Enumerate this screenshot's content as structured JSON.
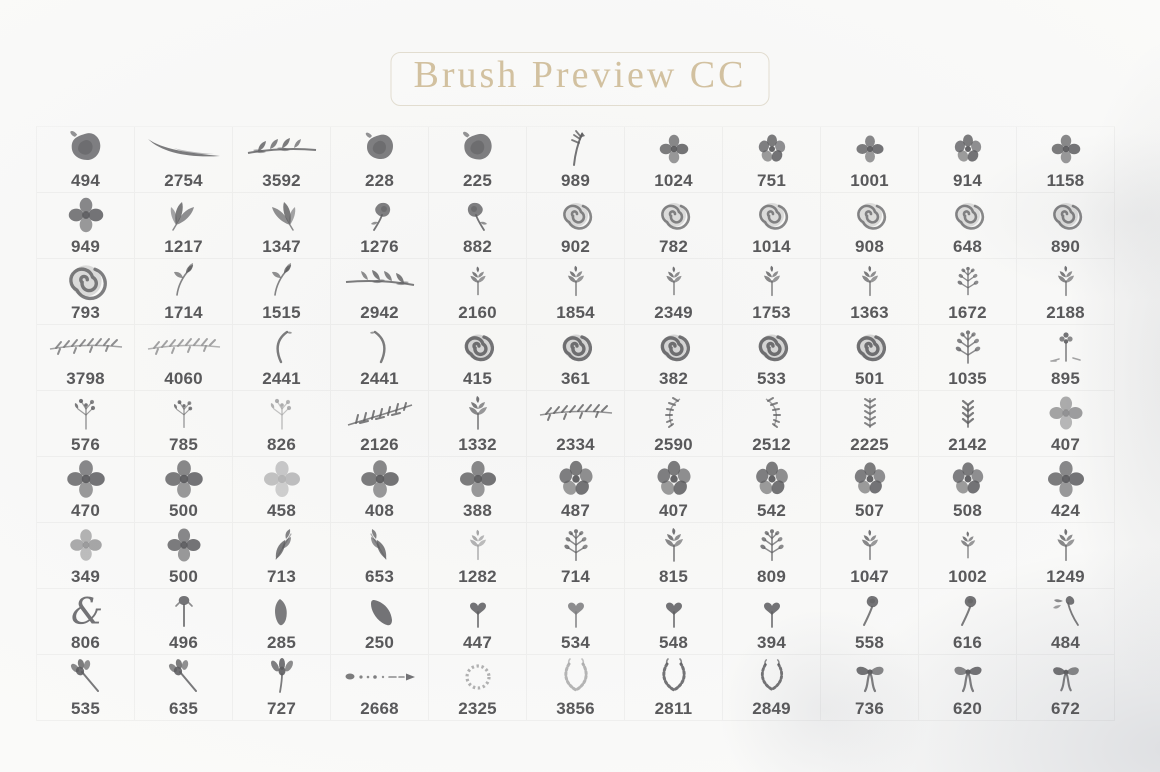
{
  "title": "Brush Preview CC",
  "colors": {
    "background": "#fafaf9",
    "title_text": "#d2c1a0",
    "title_border": "#e2ddd0",
    "number_text": "#59595b",
    "brush_ink": "#47474a",
    "wash_gray": "#a8acb6"
  },
  "grid": {
    "columns": 11,
    "rows_count": 9,
    "rows": [
      [
        {
          "v": "494",
          "i": "blob",
          "s": 1.1
        },
        {
          "v": "2754",
          "i": "swoosh"
        },
        {
          "v": "3592",
          "i": "branchH"
        },
        {
          "v": "228",
          "i": "blob"
        },
        {
          "v": "225",
          "i": "blob",
          "s": 1.05
        },
        {
          "v": "989",
          "i": "fernArrow"
        },
        {
          "v": "1024",
          "i": "flower4",
          "s": 0.95
        },
        {
          "v": "751",
          "i": "flower5"
        },
        {
          "v": "1001",
          "i": "flower4",
          "s": 0.9
        },
        {
          "v": "914",
          "i": "flower5"
        },
        {
          "v": "1158",
          "i": "flower4",
          "s": 0.95
        }
      ],
      [
        {
          "v": "949",
          "i": "flower4",
          "s": 1.15
        },
        {
          "v": "1217",
          "i": "petals3"
        },
        {
          "v": "1347",
          "i": "petals3",
          "f": 1
        },
        {
          "v": "1276",
          "i": "poppy"
        },
        {
          "v": "882",
          "i": "poppy",
          "f": 1
        },
        {
          "v": "902",
          "i": "rose"
        },
        {
          "v": "782",
          "i": "rose"
        },
        {
          "v": "1014",
          "i": "rose"
        },
        {
          "v": "908",
          "i": "rose"
        },
        {
          "v": "648",
          "i": "rose"
        },
        {
          "v": "890",
          "i": "rose"
        }
      ],
      [
        {
          "v": "793",
          "i": "rose",
          "s": 1.3,
          "o": 0.95
        },
        {
          "v": "1714",
          "i": "sprigDiag"
        },
        {
          "v": "1515",
          "i": "sprigDiag"
        },
        {
          "v": "2942",
          "i": "branchH",
          "f": 1
        },
        {
          "v": "2160",
          "i": "sprigV",
          "s": 0.85
        },
        {
          "v": "1854",
          "i": "sprigV",
          "s": 0.9
        },
        {
          "v": "2349",
          "i": "sprigV",
          "s": 0.85
        },
        {
          "v": "1753",
          "i": "sprigV",
          "s": 0.9
        },
        {
          "v": "1363",
          "i": "sprigV",
          "s": 0.9
        },
        {
          "v": "1672",
          "i": "plant",
          "s": 0.85
        },
        {
          "v": "2188",
          "i": "sprigV",
          "s": 0.9
        }
      ],
      [
        {
          "v": "3798",
          "i": "vineH",
          "o": 0.75
        },
        {
          "v": "4060",
          "i": "vineH",
          "o": 0.6
        },
        {
          "v": "2441",
          "i": "curveL"
        },
        {
          "v": "2441",
          "i": "curveL",
          "f": 1
        },
        {
          "v": "415",
          "i": "roseSolid"
        },
        {
          "v": "361",
          "i": "roseSolid"
        },
        {
          "v": "382",
          "i": "roseSolid"
        },
        {
          "v": "533",
          "i": "roseSolid"
        },
        {
          "v": "501",
          "i": "roseSolid"
        },
        {
          "v": "1035",
          "i": "plant"
        },
        {
          "v": "895",
          "i": "flowerSprig"
        }
      ],
      [
        {
          "v": "576",
          "i": "berrySprig"
        },
        {
          "v": "785",
          "i": "berrySprig",
          "s": 0.9
        },
        {
          "v": "826",
          "i": "berrySprig",
          "o": 0.5
        },
        {
          "v": "2126",
          "i": "fernDiag"
        },
        {
          "v": "1332",
          "i": "sprigV"
        },
        {
          "v": "2334",
          "i": "vineH"
        },
        {
          "v": "2590",
          "i": "laurelCurve"
        },
        {
          "v": "2512",
          "i": "laurelCurve",
          "f": 1
        },
        {
          "v": "2225",
          "i": "vineV"
        },
        {
          "v": "2142",
          "i": "chevronV"
        },
        {
          "v": "407",
          "i": "flower4",
          "o": 0.6,
          "s": 1.1
        }
      ],
      [
        {
          "v": "470",
          "i": "flower4",
          "s": 1.25
        },
        {
          "v": "500",
          "i": "flower4",
          "s": 1.25
        },
        {
          "v": "458",
          "i": "flower4",
          "o": 0.38,
          "s": 1.2
        },
        {
          "v": "408",
          "i": "flower4",
          "s": 1.25
        },
        {
          "v": "388",
          "i": "flower4",
          "s": 1.2
        },
        {
          "v": "487",
          "i": "flower5",
          "s": 1.25
        },
        {
          "v": "407",
          "i": "flower5",
          "s": 1.25
        },
        {
          "v": "542",
          "i": "flower5",
          "s": 1.2
        },
        {
          "v": "507",
          "i": "flower5",
          "s": 1.15
        },
        {
          "v": "508",
          "i": "flower5",
          "s": 1.15
        },
        {
          "v": "424",
          "i": "flower4",
          "s": 1.2
        }
      ],
      [
        {
          "v": "349",
          "i": "flower4",
          "o": 0.55,
          "s": 1.05
        },
        {
          "v": "500",
          "i": "flower4",
          "s": 1.1
        },
        {
          "v": "713",
          "i": "leaves"
        },
        {
          "v": "653",
          "i": "leaves",
          "f": 1
        },
        {
          "v": "1282",
          "i": "sprigV",
          "o": 0.55,
          "s": 0.9
        },
        {
          "v": "714",
          "i": "plant",
          "s": 0.95
        },
        {
          "v": "815",
          "i": "sprigV"
        },
        {
          "v": "809",
          "i": "plant",
          "s": 0.95
        },
        {
          "v": "1047",
          "i": "sprigV",
          "s": 0.9
        },
        {
          "v": "1002",
          "i": "sprigV",
          "s": 0.8
        },
        {
          "v": "1249",
          "i": "sprigV",
          "s": 0.95
        }
      ],
      [
        {
          "v": "806",
          "i": "amp"
        },
        {
          "v": "496",
          "i": "budStem"
        },
        {
          "v": "285",
          "i": "leaf"
        },
        {
          "v": "250",
          "i": "leafBig"
        },
        {
          "v": "447",
          "i": "heartStem"
        },
        {
          "v": "534",
          "i": "heartStem",
          "o": 0.7
        },
        {
          "v": "548",
          "i": "heartStem"
        },
        {
          "v": "394",
          "i": "heartStem"
        },
        {
          "v": "558",
          "i": "roseStem"
        },
        {
          "v": "616",
          "i": "roseStem"
        },
        {
          "v": "484",
          "i": "budLeafStem"
        }
      ],
      [
        {
          "v": "535",
          "i": "flowerStemD"
        },
        {
          "v": "635",
          "i": "flowerStemD"
        },
        {
          "v": "727",
          "i": "flowerStemV"
        },
        {
          "v": "2668",
          "i": "dotArrow"
        },
        {
          "v": "2325",
          "i": "wreath",
          "o": 0.5
        },
        {
          "v": "3856",
          "i": "laurel",
          "o": 0.45
        },
        {
          "v": "2811",
          "i": "laurel"
        },
        {
          "v": "2849",
          "i": "laurel",
          "s": 0.95
        },
        {
          "v": "736",
          "i": "bow"
        },
        {
          "v": "620",
          "i": "bow",
          "f": 1
        },
        {
          "v": "672",
          "i": "bow",
          "s": 0.95
        }
      ]
    ]
  }
}
